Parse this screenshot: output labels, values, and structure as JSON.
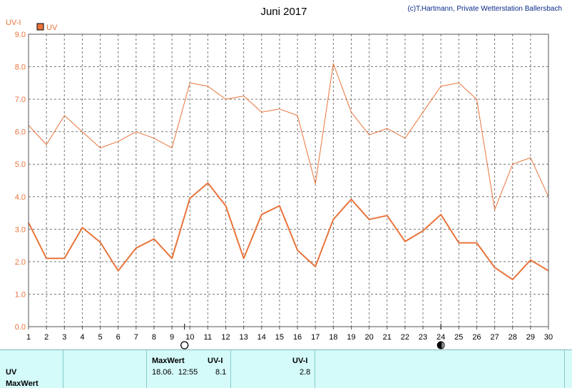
{
  "chart_data": {
    "type": "line",
    "title": "Juni 2017",
    "credit": "(c)T.Hartmann, Private Wetterstation Ballersbach",
    "ylabel": "UV-I",
    "legend": [
      "UV"
    ],
    "ylim": [
      0,
      9
    ],
    "yticks": [
      "0.0",
      "1.0",
      "2.0",
      "3.0",
      "4.0",
      "5.0",
      "6.0",
      "7.0",
      "8.0",
      "9.0"
    ],
    "x": [
      1,
      2,
      3,
      4,
      5,
      6,
      7,
      8,
      9,
      10,
      11,
      12,
      13,
      14,
      15,
      16,
      17,
      18,
      19,
      20,
      21,
      22,
      23,
      24,
      25,
      26,
      27,
      28,
      29,
      30
    ],
    "grid": true,
    "series": [
      {
        "name": "UV",
        "kind": "daily max",
        "values": [
          6.2,
          5.6,
          6.5,
          6.0,
          5.5,
          5.7,
          6.0,
          5.8,
          5.5,
          7.5,
          7.4,
          7.0,
          7.1,
          6.6,
          6.7,
          6.5,
          4.4,
          8.1,
          6.6,
          5.9,
          6.1,
          5.8,
          6.6,
          7.4,
          7.5,
          7.0,
          3.6,
          5.0,
          5.2,
          4.0
        ]
      },
      {
        "name": "UV",
        "kind": "daily mean",
        "values": [
          3.2,
          2.1,
          2.1,
          3.05,
          2.6,
          1.72,
          2.42,
          2.7,
          2.1,
          3.95,
          4.42,
          3.72,
          2.1,
          3.45,
          3.72,
          2.35,
          1.85,
          3.3,
          3.92,
          3.3,
          3.42,
          2.62,
          2.95,
          3.45,
          2.58,
          2.58,
          1.82,
          1.45,
          2.05,
          1.72
        ]
      }
    ],
    "moon_markers": [
      {
        "day": 9.7,
        "phase": "full"
      },
      {
        "day": 24,
        "phase": "new"
      }
    ],
    "color": "#e8743b"
  },
  "footer": {
    "row_label_uv": "UV",
    "row_label_maxwert": "MaxWert",
    "header_maxwert": "MaxWert",
    "header_uvi_1": "UV-I",
    "header_uvi_2": "UV-I",
    "max_datetime": "18.06.  12:55",
    "max_value": "8.1",
    "mean_value": "2.8"
  }
}
